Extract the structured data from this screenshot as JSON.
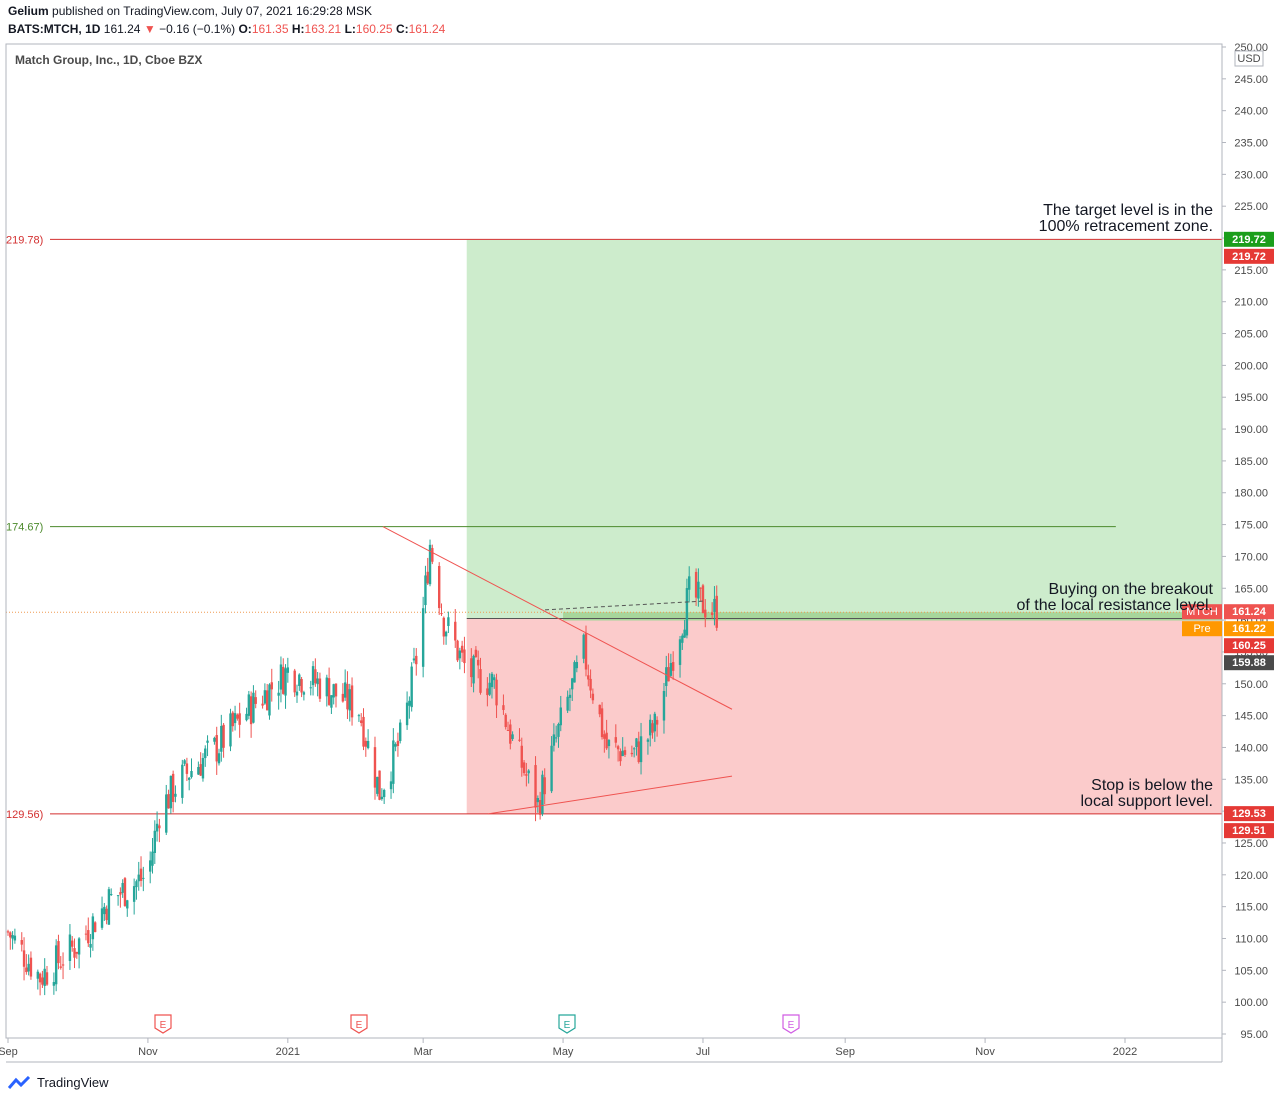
{
  "header": {
    "line1_author": "Gelium",
    "line1_text": "published on TradingView.com, July 07, 2021 16:29:28 MSK",
    "symbol": "BATS:MTCH, 1D",
    "last": "161.24",
    "change": "−0.16 (−0.1%)",
    "o_label": "O:",
    "o": "161.35",
    "h_label": "H:",
    "h": "163.21",
    "l_label": "L:",
    "l": "160.25",
    "c_label": "C:",
    "c": "161.24"
  },
  "chart_title": "Match Group, Inc., 1D, Cboe BZX",
  "currency": "USD",
  "footer": {
    "brand": "TradingView"
  },
  "colors": {
    "up": "#26a69a",
    "down": "#ef5350",
    "profit_zone": "#cdeccc",
    "loss_zone": "#fbcbcb",
    "target_line": "#d32f2f",
    "resistance_line": "#4c8a2c",
    "trend_line": "#ef5350"
  },
  "chart_data": {
    "type": "candlestick",
    "title": "Match Group, Inc., 1D, Cboe BZX",
    "ylim": [
      95,
      250
    ],
    "y_axis_labels": [
      "250.00",
      "245.00",
      "240.00",
      "235.00",
      "230.00",
      "225.00",
      "220.00",
      "215.00",
      "210.00",
      "205.00",
      "200.00",
      "195.00",
      "190.00",
      "185.00",
      "180.00",
      "175.00",
      "170.00",
      "165.00",
      "160.00",
      "155.00",
      "150.00",
      "145.00",
      "140.00",
      "135.00",
      "130.00",
      "125.00",
      "120.00",
      "115.00",
      "110.00",
      "105.00",
      "100.00",
      "95.00"
    ],
    "x_axis_labels": [
      "Sep",
      "Nov",
      "2021",
      "Mar",
      "May",
      "Jul",
      "Sep",
      "Nov",
      "2022"
    ],
    "price_series_approx": [
      {
        "d": "2020-09-01",
        "c": 111
      },
      {
        "d": "2020-09-15",
        "c": 104
      },
      {
        "d": "2020-10-01",
        "c": 109
      },
      {
        "d": "2020-10-15",
        "c": 116
      },
      {
        "d": "2020-11-01",
        "c": 120
      },
      {
        "d": "2020-11-06",
        "c": 130
      },
      {
        "d": "2020-11-15",
        "c": 135
      },
      {
        "d": "2020-12-01",
        "c": 140
      },
      {
        "d": "2020-12-15",
        "c": 146
      },
      {
        "d": "2021-01-01",
        "c": 152
      },
      {
        "d": "2021-01-15",
        "c": 150
      },
      {
        "d": "2021-02-01",
        "c": 146
      },
      {
        "d": "2021-02-10",
        "c": 133
      },
      {
        "d": "2021-02-20",
        "c": 142
      },
      {
        "d": "2021-02-28",
        "c": 158
      },
      {
        "d": "2021-03-04",
        "c": 172
      },
      {
        "d": "2021-03-10",
        "c": 160
      },
      {
        "d": "2021-03-20",
        "c": 152
      },
      {
        "d": "2021-04-01",
        "c": 150
      },
      {
        "d": "2021-04-10",
        "c": 140
      },
      {
        "d": "2021-04-20",
        "c": 131
      },
      {
        "d": "2021-05-01",
        "c": 145
      },
      {
        "d": "2021-05-10",
        "c": 155
      },
      {
        "d": "2021-05-20",
        "c": 140
      },
      {
        "d": "2021-06-01",
        "c": 139
      },
      {
        "d": "2021-06-10",
        "c": 143
      },
      {
        "d": "2021-06-18",
        "c": 155
      },
      {
        "d": "2021-06-25",
        "c": 164
      },
      {
        "d": "2021-07-07",
        "c": 161.24
      }
    ],
    "levels": [
      {
        "name": "target",
        "value": 219.78,
        "label": "219.78)"
      },
      {
        "name": "local-high",
        "value": 174.67,
        "label": "174.67)"
      },
      {
        "name": "support",
        "value": 129.56,
        "label": "129.56)"
      }
    ],
    "position": {
      "entry": 160.25,
      "target": 219.72,
      "stop": 129.53
    },
    "price_tags": [
      {
        "text": "219.72",
        "value": 219.72,
        "color": "#1b9e1b"
      },
      {
        "text": "219.72",
        "value": 219.72,
        "color": "#e53935"
      },
      {
        "text": "161.24",
        "value": 161.24,
        "color": "#ef5350",
        "prefix": "MTCH"
      },
      {
        "text": "161.22",
        "value": 161.22,
        "color": "#ff9800",
        "prefix": "Pre"
      },
      {
        "text": "160.25",
        "value": 160.25,
        "color": "#e53935"
      },
      {
        "text": "159.88",
        "value": 159.88,
        "color": "#4a4a4a"
      },
      {
        "text": "129.53",
        "value": 129.53,
        "color": "#e53935"
      },
      {
        "text": "129.51",
        "value": 129.51,
        "color": "#e53935"
      }
    ],
    "annotations": [
      {
        "line1": "The target level is in the",
        "line2": "100% retracement zone."
      },
      {
        "line1": "Buying on the breakout",
        "line2": "of the local resistance level."
      },
      {
        "line1": "Stop is below the",
        "line2": "local support level."
      }
    ],
    "earnings_markers": [
      {
        "label": "E",
        "date": "2020-11",
        "color": "#ef5350"
      },
      {
        "label": "E",
        "date": "2021-02",
        "color": "#ef5350"
      },
      {
        "label": "E",
        "date": "2021-05",
        "color": "#26a69a"
      },
      {
        "label": "E",
        "date": "2021-08",
        "color": "#d05ce3"
      }
    ]
  }
}
